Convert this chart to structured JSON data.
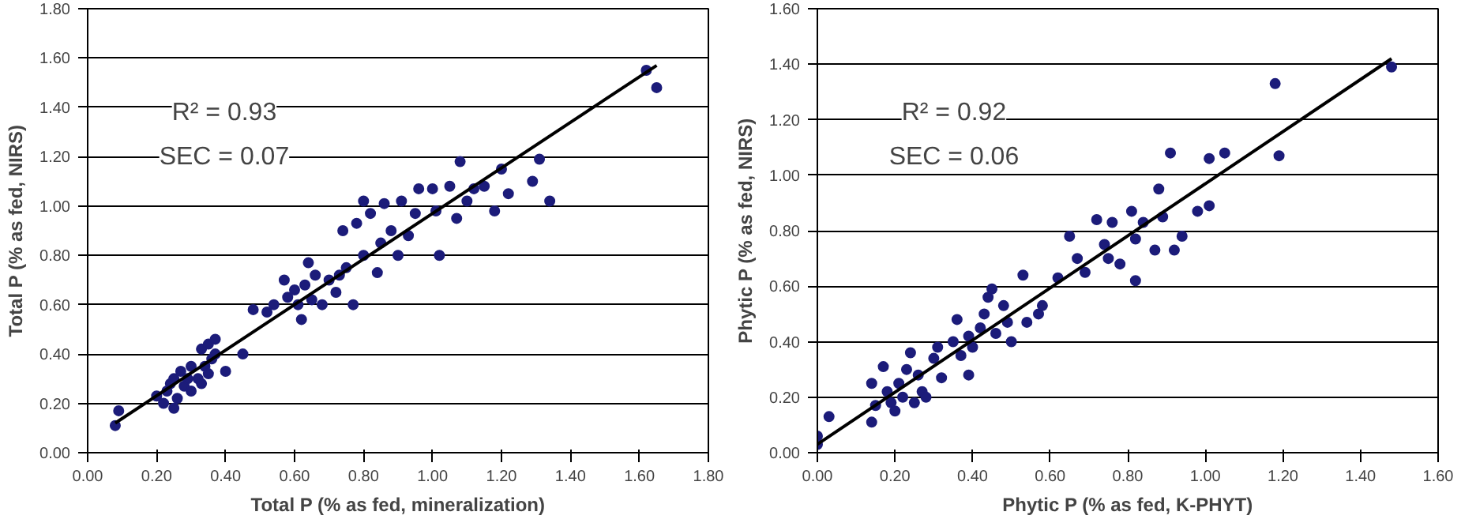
{
  "chart_data": [
    {
      "type": "scatter",
      "xlabel": "Total P (% as fed, mineralization)",
      "ylabel": "Total P (% as fed, NIRS)",
      "annotations": [
        "R² = 0.93",
        "SEC = 0.07"
      ],
      "grid": "y",
      "xlim": [
        0,
        1.8
      ],
      "ylim": [
        0,
        1.8
      ],
      "xticks": [
        {
          "value": 0,
          "label": "0.00"
        },
        {
          "value": 0.2,
          "label": "0.20"
        },
        {
          "value": 0.4,
          "label": "0.40"
        },
        {
          "value": 0.6,
          "label": "0.60"
        },
        {
          "value": 0.8,
          "label": "0.80"
        },
        {
          "value": 1.0,
          "label": "1.00"
        },
        {
          "value": 1.2,
          "label": "1.20"
        },
        {
          "value": 1.4,
          "label": "1.40"
        },
        {
          "value": 1.6,
          "label": "1.60"
        },
        {
          "value": 1.8,
          "label": "1.80"
        }
      ],
      "yticks": [
        {
          "value": 0,
          "label": "0.00"
        },
        {
          "value": 0.2,
          "label": "0.20"
        },
        {
          "value": 0.4,
          "label": "0.40"
        },
        {
          "value": 0.6,
          "label": "0.60"
        },
        {
          "value": 0.8,
          "label": "0.80"
        },
        {
          "value": 1.0,
          "label": "1.00"
        },
        {
          "value": 1.2,
          "label": "1.20"
        },
        {
          "value": 1.4,
          "label": "1.40"
        },
        {
          "value": 1.6,
          "label": "1.60"
        },
        {
          "value": 1.8,
          "label": "1.80"
        }
      ],
      "series": [
        {
          "marker": "circle",
          "color": "#1c1c7a",
          "x": [
            0.08,
            0.09,
            0.2,
            0.22,
            0.23,
            0.24,
            0.25,
            0.25,
            0.26,
            0.27,
            0.28,
            0.29,
            0.3,
            0.3,
            0.32,
            0.33,
            0.33,
            0.34,
            0.35,
            0.35,
            0.36,
            0.37,
            0.37,
            0.4,
            0.45,
            0.48,
            0.52,
            0.54,
            0.57,
            0.58,
            0.6,
            0.61,
            0.62,
            0.63,
            0.64,
            0.65,
            0.66,
            0.68,
            0.7,
            0.72,
            0.73,
            0.74,
            0.75,
            0.77,
            0.78,
            0.8,
            0.8,
            0.82,
            0.84,
            0.85,
            0.86,
            0.88,
            0.9,
            0.91,
            0.93,
            0.95,
            0.96,
            1.0,
            1.01,
            1.02,
            1.05,
            1.07,
            1.08,
            1.1,
            1.12,
            1.15,
            1.18,
            1.2,
            1.22,
            1.29,
            1.31,
            1.34,
            1.62,
            1.65
          ],
          "values": [
            0.11,
            0.17,
            0.23,
            0.2,
            0.25,
            0.28,
            0.18,
            0.3,
            0.22,
            0.33,
            0.27,
            0.3,
            0.25,
            0.35,
            0.3,
            0.28,
            0.42,
            0.35,
            0.32,
            0.44,
            0.38,
            0.4,
            0.46,
            0.33,
            0.4,
            0.58,
            0.57,
            0.6,
            0.7,
            0.63,
            0.66,
            0.6,
            0.54,
            0.68,
            0.77,
            0.62,
            0.72,
            0.6,
            0.7,
            0.65,
            0.72,
            0.9,
            0.75,
            0.6,
            0.93,
            1.02,
            0.8,
            0.97,
            0.73,
            0.85,
            1.01,
            0.9,
            0.8,
            1.02,
            0.88,
            0.97,
            1.07,
            1.07,
            0.98,
            0.8,
            1.08,
            0.95,
            1.18,
            1.02,
            1.07,
            1.08,
            0.98,
            1.15,
            1.05,
            1.1,
            1.19,
            1.02,
            1.55,
            1.48
          ]
        },
        {
          "type": "line",
          "marker": "none",
          "color": "#000000",
          "x": [
            0.08,
            1.65
          ],
          "values": [
            0.12,
            1.57
          ]
        }
      ]
    },
    {
      "type": "scatter",
      "xlabel": "Phytic P (% as fed, K-PHYT)",
      "ylabel": "Phytic P (% as fed, NIRS)",
      "annotations": [
        "R² = 0.92",
        "SEC = 0.06"
      ],
      "grid": "y",
      "xlim": [
        0,
        1.6
      ],
      "ylim": [
        0,
        1.6
      ],
      "xticks": [
        {
          "value": 0,
          "label": "0.00"
        },
        {
          "value": 0.2,
          "label": "0.20"
        },
        {
          "value": 0.4,
          "label": "0.40"
        },
        {
          "value": 0.6,
          "label": "0.60"
        },
        {
          "value": 0.8,
          "label": "0.80"
        },
        {
          "value": 1.0,
          "label": "1.00"
        },
        {
          "value": 1.2,
          "label": "1.20"
        },
        {
          "value": 1.4,
          "label": "1.40"
        },
        {
          "value": 1.6,
          "label": "1.60"
        }
      ],
      "yticks": [
        {
          "value": 0,
          "label": "0.00"
        },
        {
          "value": 0.2,
          "label": "0.20"
        },
        {
          "value": 0.4,
          "label": "0.40"
        },
        {
          "value": 0.6,
          "label": "0.60"
        },
        {
          "value": 0.8,
          "label": "0.80"
        },
        {
          "value": 1.0,
          "label": "1.00"
        },
        {
          "value": 1.2,
          "label": "1.20"
        },
        {
          "value": 1.4,
          "label": "1.40"
        },
        {
          "value": 1.6,
          "label": "1.60"
        }
      ],
      "series": [
        {
          "marker": "circle",
          "color": "#1c1c7a",
          "x": [
            0.0,
            0.0,
            0.03,
            0.14,
            0.14,
            0.15,
            0.17,
            0.18,
            0.19,
            0.2,
            0.21,
            0.22,
            0.23,
            0.24,
            0.25,
            0.26,
            0.27,
            0.28,
            0.3,
            0.31,
            0.32,
            0.35,
            0.36,
            0.37,
            0.39,
            0.39,
            0.4,
            0.42,
            0.43,
            0.44,
            0.45,
            0.46,
            0.48,
            0.49,
            0.5,
            0.53,
            0.54,
            0.57,
            0.58,
            0.62,
            0.65,
            0.67,
            0.69,
            0.72,
            0.74,
            0.75,
            0.76,
            0.78,
            0.81,
            0.82,
            0.82,
            0.84,
            0.87,
            0.88,
            0.89,
            0.91,
            0.92,
            0.94,
            0.98,
            1.01,
            1.01,
            1.05,
            1.18,
            1.19,
            1.48
          ],
          "values": [
            0.03,
            0.06,
            0.13,
            0.11,
            0.25,
            0.17,
            0.31,
            0.22,
            0.18,
            0.15,
            0.25,
            0.2,
            0.3,
            0.36,
            0.18,
            0.28,
            0.22,
            0.2,
            0.34,
            0.38,
            0.27,
            0.4,
            0.48,
            0.35,
            0.28,
            0.42,
            0.38,
            0.45,
            0.5,
            0.56,
            0.59,
            0.43,
            0.53,
            0.47,
            0.4,
            0.64,
            0.47,
            0.5,
            0.53,
            0.63,
            0.78,
            0.7,
            0.65,
            0.84,
            0.75,
            0.7,
            0.83,
            0.68,
            0.87,
            0.62,
            0.77,
            0.83,
            0.73,
            0.95,
            0.85,
            1.08,
            0.73,
            0.78,
            0.87,
            1.06,
            0.89,
            1.08,
            1.33,
            1.07,
            1.39
          ]
        },
        {
          "type": "line",
          "marker": "none",
          "color": "#000000",
          "x": [
            0.0,
            1.48
          ],
          "values": [
            0.03,
            1.42
          ]
        }
      ]
    }
  ]
}
